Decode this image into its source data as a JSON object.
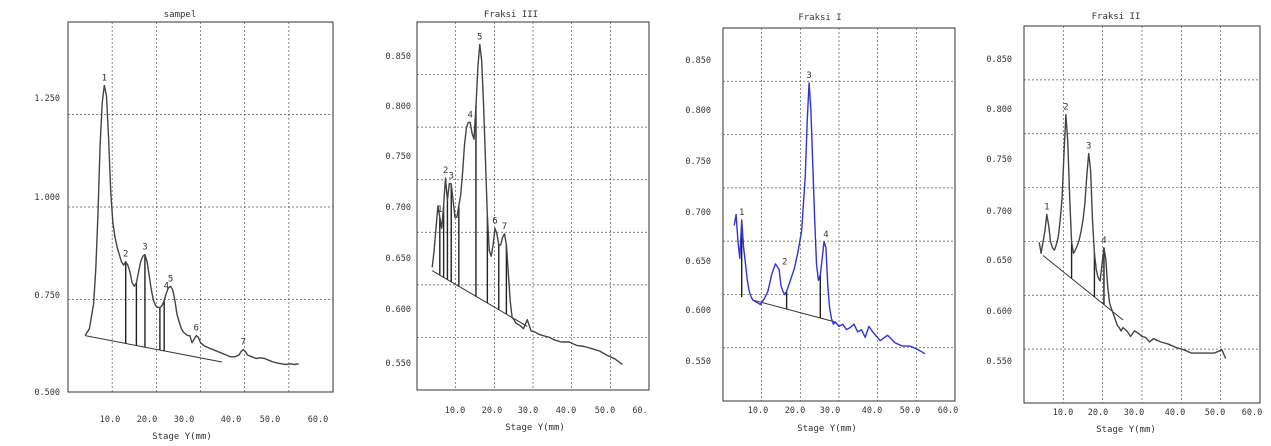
{
  "chart_data": [
    {
      "type": "line",
      "title": "sampel",
      "xlabel": "Stage Y(mm)",
      "ylabel": "",
      "xticks": [
        "10.0",
        "20.0",
        "30.0",
        "40.0",
        "50.0",
        "60.0"
      ],
      "yticks": [
        "0.500",
        "0.750",
        "1.000",
        "1.250"
      ],
      "xlim": [
        0,
        62
      ],
      "ylim": [
        0.5,
        1.55
      ],
      "grid": true,
      "color": "#444444",
      "baseline": [
        [
          4,
          0.66
        ],
        [
          36,
          0.585
        ]
      ],
      "series": [
        {
          "x": [
            4,
            5,
            6,
            6.5,
            7,
            7.5,
            8,
            8.5,
            9,
            9.5,
            10,
            10.5,
            11,
            11.5,
            12,
            12.5,
            13,
            13.5,
            14,
            14.5,
            15,
            15.5,
            16,
            16.5,
            17,
            17.5,
            18,
            18.5,
            19,
            19.5,
            20,
            20.5,
            21,
            21.5,
            22,
            22.5,
            23,
            23.5,
            24,
            24.5,
            25,
            25.5,
            26,
            26.5,
            27,
            27.5,
            28,
            28.5,
            29,
            29.5,
            30,
            30.5,
            31,
            31.5,
            32,
            33,
            34,
            35,
            36,
            37,
            38,
            39,
            40,
            40.5,
            41,
            41.5,
            42,
            43,
            44,
            45,
            46,
            47,
            48,
            49,
            50,
            51,
            52,
            53,
            54
          ],
          "y": [
            0.66,
            0.68,
            0.75,
            0.85,
            1.0,
            1.2,
            1.32,
            1.37,
            1.34,
            1.22,
            1.07,
            0.98,
            0.94,
            0.91,
            0.89,
            0.87,
            0.86,
            0.87,
            0.86,
            0.84,
            0.81,
            0.8,
            0.81,
            0.84,
            0.87,
            0.885,
            0.89,
            0.87,
            0.83,
            0.79,
            0.76,
            0.745,
            0.74,
            0.74,
            0.745,
            0.76,
            0.78,
            0.795,
            0.8,
            0.79,
            0.76,
            0.72,
            0.7,
            0.68,
            0.67,
            0.665,
            0.66,
            0.66,
            0.64,
            0.65,
            0.66,
            0.655,
            0.64,
            0.635,
            0.63,
            0.625,
            0.62,
            0.615,
            0.61,
            0.605,
            0.6,
            0.6,
            0.605,
            0.615,
            0.62,
            0.615,
            0.605,
            0.6,
            0.595,
            0.597,
            0.595,
            0.59,
            0.585,
            0.582,
            0.58,
            0.578,
            0.58,
            0.578,
            0.58
          ]
        }
      ],
      "peaks": [
        {
          "label": "1",
          "x": 8.5,
          "y": 1.37
        },
        {
          "label": "2",
          "x": 13.5,
          "y": 0.87
        },
        {
          "label": "3",
          "x": 18.0,
          "y": 0.89
        },
        {
          "label": "4",
          "x": 23.0,
          "y": 0.78
        },
        {
          "label": "5",
          "x": 24.0,
          "y": 0.8
        },
        {
          "label": "6",
          "x": 30.0,
          "y": 0.66
        },
        {
          "label": "7",
          "x": 41.0,
          "y": 0.62
        }
      ],
      "drop_lines": [
        13.5,
        16.0,
        18.0,
        21.5,
        22.5
      ]
    },
    {
      "type": "line",
      "title": "Fraksi III",
      "xlabel": "Stage Y(mm)",
      "ylabel": "",
      "xticks": [
        "10.0",
        "20.0",
        "30.0",
        "40.0",
        "50.0",
        "60."
      ],
      "yticks": [
        "0.550",
        "0.600",
        "0.650",
        "0.700",
        "0.750",
        "0.800",
        "0.850"
      ],
      "xlim": [
        0,
        61
      ],
      "ylim": [
        0.535,
        0.865
      ],
      "grid": true,
      "color": "#444444",
      "baseline": [
        [
          4,
          0.642
        ],
        [
          29,
          0.592
        ]
      ],
      "series": [
        {
          "x": [
            4,
            4.5,
            5,
            5.5,
            6,
            6.5,
            7,
            7.5,
            8,
            8.5,
            9,
            9.5,
            10,
            10.5,
            11,
            11.5,
            12,
            12.5,
            13,
            13.5,
            14,
            14.5,
            15,
            15.5,
            16,
            16.5,
            17,
            17.5,
            18,
            18.5,
            19,
            19.5,
            20,
            20.5,
            21,
            21.5,
            22,
            22.5,
            23,
            23.5,
            24,
            24.5,
            25,
            25.5,
            26,
            27,
            28,
            29,
            30,
            31,
            32,
            33,
            34,
            35,
            36,
            38,
            40,
            42,
            44,
            46,
            48,
            50,
            52,
            54
          ],
          "y": [
            0.645,
            0.66,
            0.68,
            0.7,
            0.69,
            0.68,
            0.7,
            0.725,
            0.705,
            0.72,
            0.72,
            0.705,
            0.69,
            0.69,
            0.7,
            0.71,
            0.73,
            0.755,
            0.77,
            0.775,
            0.775,
            0.765,
            0.76,
            0.79,
            0.825,
            0.845,
            0.83,
            0.79,
            0.74,
            0.69,
            0.66,
            0.655,
            0.665,
            0.68,
            0.675,
            0.665,
            0.665,
            0.672,
            0.675,
            0.665,
            0.64,
            0.615,
            0.6,
            0.598,
            0.595,
            0.593,
            0.59,
            0.598,
            0.588,
            0.587,
            0.585,
            0.584,
            0.583,
            0.582,
            0.58,
            0.578,
            0.578,
            0.575,
            0.574,
            0.572,
            0.57,
            0.566,
            0.563,
            0.558
          ]
        }
      ],
      "peaks": [
        {
          "label": "1",
          "x": 6.0,
          "y": 0.69
        },
        {
          "label": "2",
          "x": 7.5,
          "y": 0.725
        },
        {
          "label": "3",
          "x": 9.0,
          "y": 0.72
        },
        {
          "label": "4",
          "x": 14.0,
          "y": 0.775
        },
        {
          "label": "5",
          "x": 16.5,
          "y": 0.845
        },
        {
          "label": "6",
          "x": 20.5,
          "y": 0.68
        },
        {
          "label": "7",
          "x": 23.0,
          "y": 0.675
        }
      ],
      "drop_lines": [
        6.0,
        7.0,
        8.0,
        9.0,
        11.0,
        15.5,
        18.5,
        21.5,
        23.5
      ]
    },
    {
      "type": "line",
      "title": "Fraksi I",
      "xlabel": "Stage Y(mm)",
      "ylabel": "",
      "xticks": [
        "10.0",
        "20.0",
        "30.0",
        "40.0",
        "50.0",
        "60.0"
      ],
      "yticks": [
        "0.550",
        "0.600",
        "0.650",
        "0.700",
        "0.750",
        "0.800",
        "0.850"
      ],
      "xlim": [
        0,
        62
      ],
      "ylim": [
        0.525,
        0.865
      ],
      "grid": true,
      "color": "#3333cc",
      "baseline": [
        [
          8,
          0.617
        ],
        [
          30,
          0.597
        ]
      ],
      "series": [
        {
          "x": [
            3,
            3.5,
            4,
            4.5,
            5,
            5.5,
            6,
            6.5,
            7,
            7.5,
            8,
            9,
            10,
            11,
            12,
            13,
            14,
            15,
            15.5,
            16,
            16.5,
            17,
            17.5,
            18,
            19,
            20,
            21,
            22,
            22.5,
            23,
            23.5,
            24,
            24.5,
            25,
            25.5,
            26,
            26.5,
            27,
            27.5,
            28,
            28.5,
            29,
            29.5,
            30,
            31,
            32,
            33,
            34,
            35,
            36,
            37,
            38,
            39,
            40,
            42,
            44,
            46,
            48,
            50,
            52,
            54
          ],
          "y": [
            0.685,
            0.695,
            0.67,
            0.655,
            0.69,
            0.665,
            0.65,
            0.635,
            0.625,
            0.62,
            0.617,
            0.615,
            0.613,
            0.618,
            0.625,
            0.64,
            0.65,
            0.645,
            0.63,
            0.625,
            0.622,
            0.625,
            0.63,
            0.635,
            0.645,
            0.66,
            0.68,
            0.73,
            0.78,
            0.815,
            0.79,
            0.74,
            0.69,
            0.65,
            0.635,
            0.64,
            0.655,
            0.67,
            0.665,
            0.63,
            0.61,
            0.6,
            0.595,
            0.597,
            0.593,
            0.595,
            0.59,
            0.592,
            0.595,
            0.588,
            0.59,
            0.583,
            0.593,
            0.588,
            0.58,
            0.585,
            0.578,
            0.575,
            0.575,
            0.572,
            0.568
          ]
        }
      ],
      "peaks": [
        {
          "label": "1",
          "x": 5.0,
          "y": 0.69
        },
        {
          "label": "2",
          "x": 16.5,
          "y": 0.645
        },
        {
          "label": "3",
          "x": 23.0,
          "y": 0.815
        },
        {
          "label": "4",
          "x": 27.5,
          "y": 0.67
        }
      ],
      "drop_lines": [
        5.0,
        17.0,
        26.0
      ]
    },
    {
      "type": "line",
      "title": "Fraksi II",
      "xlabel": "Stage Y(mm)",
      "ylabel": "",
      "xticks": [
        "10.0",
        "20.0",
        "30.0",
        "40.0",
        "50.0",
        "60.0"
      ],
      "yticks": [
        "0.550",
        "0.600",
        "0.650",
        "0.700",
        "0.750",
        "0.800",
        "0.850"
      ],
      "xlim": [
        0,
        62
      ],
      "ylim": [
        0.525,
        0.865
      ],
      "grid": true,
      "color": "#444444",
      "baseline": [
        [
          5,
          0.658
        ],
        [
          26,
          0.6
        ]
      ],
      "series": [
        {
          "x": [
            4,
            4.5,
            5,
            5.5,
            6,
            6.5,
            7,
            7.5,
            8,
            8.5,
            9,
            9.5,
            10,
            10.5,
            11,
            11.5,
            12,
            12.5,
            13,
            13.5,
            14,
            14.5,
            15,
            15.5,
            16,
            16.5,
            17,
            17.5,
            18,
            18.5,
            19,
            19.5,
            20,
            20.5,
            21,
            21.5,
            22,
            22.5,
            23,
            23.5,
            24,
            24.5,
            25,
            25.5,
            26,
            27,
            28,
            29,
            30,
            31,
            32,
            33,
            34,
            36,
            38,
            40,
            42,
            44,
            46,
            48,
            50,
            52,
            53
          ],
          "y": [
            0.67,
            0.66,
            0.67,
            0.68,
            0.695,
            0.685,
            0.67,
            0.665,
            0.663,
            0.668,
            0.675,
            0.69,
            0.71,
            0.75,
            0.785,
            0.76,
            0.71,
            0.67,
            0.66,
            0.663,
            0.667,
            0.672,
            0.68,
            0.69,
            0.705,
            0.73,
            0.75,
            0.735,
            0.69,
            0.66,
            0.645,
            0.638,
            0.635,
            0.65,
            0.665,
            0.655,
            0.63,
            0.615,
            0.61,
            0.605,
            0.6,
            0.595,
            0.593,
            0.59,
            0.593,
            0.59,
            0.585,
            0.59,
            0.588,
            0.585,
            0.584,
            0.58,
            0.583,
            0.58,
            0.578,
            0.575,
            0.573,
            0.57,
            0.57,
            0.57,
            0.57,
            0.573,
            0.565
          ]
        }
      ],
      "peaks": [
        {
          "label": "1",
          "x": 6.0,
          "y": 0.695
        },
        {
          "label": "2",
          "x": 11.0,
          "y": 0.785
        },
        {
          "label": "3",
          "x": 17.0,
          "y": 0.75
        },
        {
          "label": "4",
          "x": 21.0,
          "y": 0.665
        }
      ],
      "drop_lines": [
        12.5,
        18.5,
        21.0
      ]
    }
  ]
}
